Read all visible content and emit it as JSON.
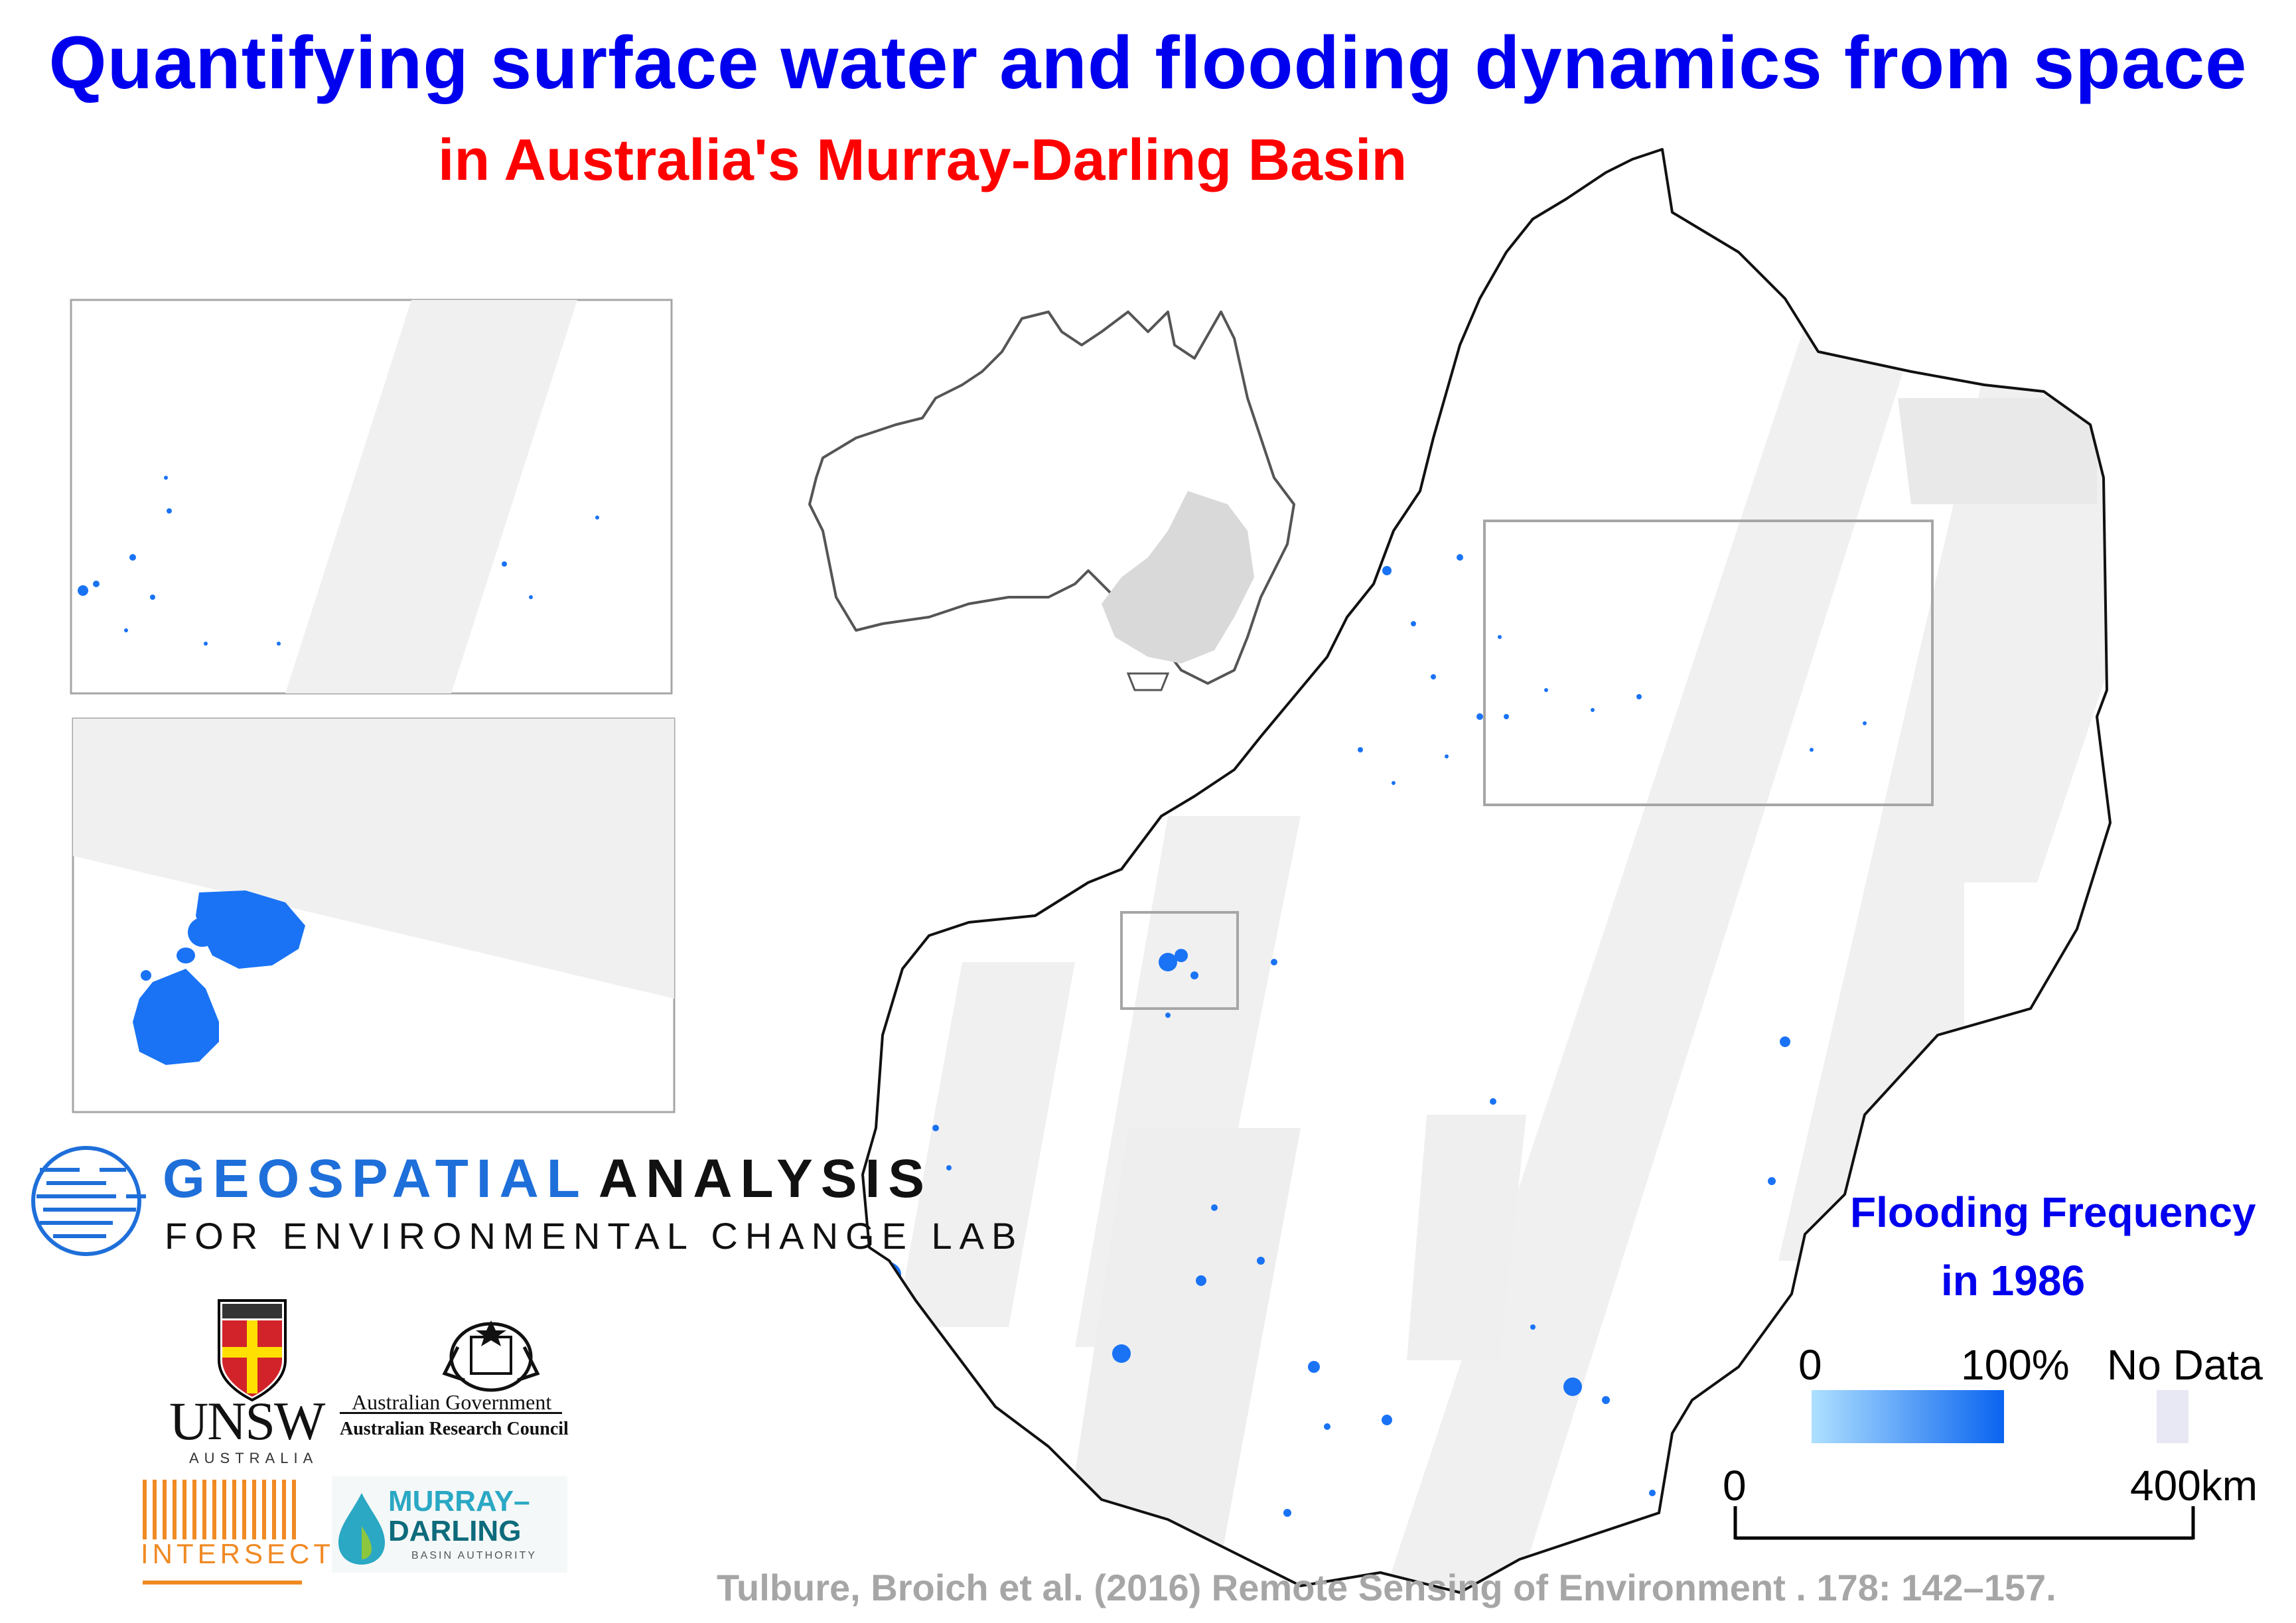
{
  "header": {
    "title": "Quantifying surface water and flooding dynamics from space",
    "subtitle": "in Australia's Murray-Darling Basin"
  },
  "legend": {
    "title_line1": "Flooding Frequency",
    "title_line2": "in 1986",
    "min_label": "0",
    "max_label": "100%",
    "nodata_label": "No Data",
    "gradient_start_color": "#aee0ff",
    "gradient_end_color": "#0a64f0",
    "nodata_color": "#e8e8f4"
  },
  "scalebar": {
    "start_label": "0",
    "end_label": "400km"
  },
  "lab_logo": {
    "word1": "GEOSPATIAL",
    "word2": "ANALYSIS",
    "line2": "FOR ENVIRONMENTAL CHANGE LAB",
    "word1_color": "#1e6fd9",
    "word2_color": "#111111"
  },
  "partner_logos": {
    "unsw_name": "UNSW",
    "unsw_sub": "AUSTRALIA",
    "gov_line1": "Australian Government",
    "gov_line2": "Australian Research Council",
    "intersect": "INTERSECT",
    "mdba_line1": "MURRAY–",
    "mdba_line2": "DARLING",
    "mdba_line3": "BASIN AUTHORITY"
  },
  "citation": "Tulbure, Broich et al.  (2016) Remote Sensing of Environment . 178: 142–157.",
  "colors": {
    "title": "#0000ee",
    "subtitle": "#ff0000",
    "water": "#1a73f5",
    "nodata_swath": "#f0f0f0",
    "citation": "#a6a6a6"
  }
}
